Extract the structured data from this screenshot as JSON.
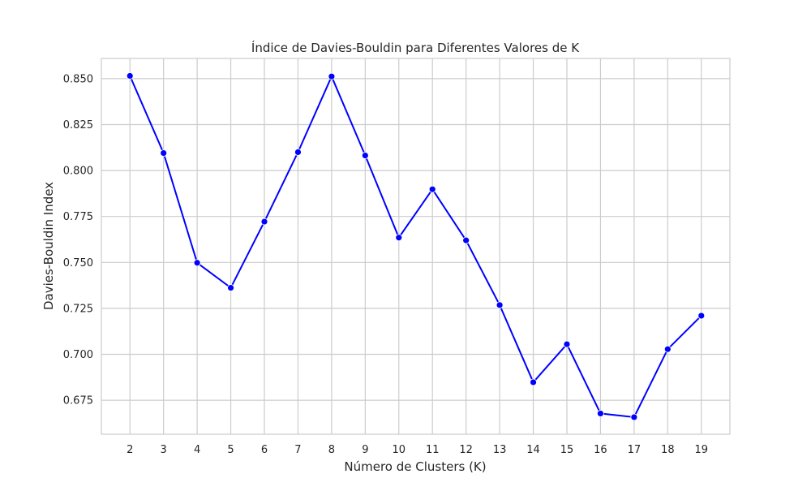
{
  "chart_data": {
    "type": "line",
    "title": "Índice de Davies-Bouldin para Diferentes Valores de K",
    "xlabel": "Número de Clusters (K)",
    "ylabel": "Davies-Bouldin Index",
    "x": [
      2,
      3,
      4,
      5,
      6,
      7,
      8,
      9,
      10,
      11,
      12,
      13,
      14,
      15,
      16,
      17,
      18,
      19
    ],
    "series": [
      {
        "values": [
          0.8515,
          0.8095,
          0.7498,
          0.7362,
          0.7722,
          0.81,
          0.8512,
          0.8082,
          0.7635,
          0.7898,
          0.762,
          0.7268,
          0.6848,
          0.7055,
          0.6678,
          0.6658,
          0.7028,
          0.721
        ],
        "color": "#0000ff"
      }
    ],
    "xlim": [
      1.15,
      19.85
    ],
    "ylim": [
      0.6565,
      0.861
    ],
    "xticks": [
      "2",
      "3",
      "4",
      "5",
      "6",
      "7",
      "8",
      "9",
      "10",
      "11",
      "12",
      "13",
      "14",
      "15",
      "16",
      "17",
      "18",
      "19"
    ],
    "yticks": [
      "0.675",
      "0.700",
      "0.725",
      "0.750",
      "0.775",
      "0.800",
      "0.825",
      "0.850"
    ],
    "grid": true,
    "legend": "none"
  }
}
